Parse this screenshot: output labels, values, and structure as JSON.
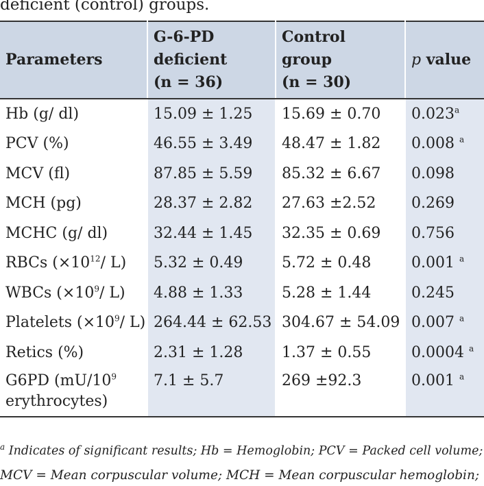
{
  "caption": "deficient (control) groups.",
  "header": {
    "col1": "Parameters",
    "col2_l1": "G-6-PD",
    "col2_l2": "deficient",
    "col2_l3": "(n = 36)",
    "col3_l1": "Control group",
    "col3_l2": "(n = 30)",
    "col4_p": "p",
    "col4_rest": " value"
  },
  "rows": [
    {
      "param": "Hb (g/ dl)",
      "deficient": "15.09 ± 1.25",
      "control": "15.69 ± 0.70",
      "p": "0.023",
      "sig": "a"
    },
    {
      "param": "PCV (%)",
      "deficient": "46.55 ± 3.49",
      "control": "48.47 ± 1.82",
      "p": "0.008 ",
      "sig": "a"
    },
    {
      "param": "MCV (fl)",
      "deficient": "87.85 ± 5.59",
      "control": "85.32 ± 6.67",
      "p": "0.098",
      "sig": ""
    },
    {
      "param": "MCH (pg)",
      "deficient": "28.37 ± 2.82",
      "control": "27.63 ±2.52",
      "p": "0.269",
      "sig": ""
    },
    {
      "param": "MCHC (g/ dl)",
      "deficient": "32.44 ± 1.45",
      "control": "32.35 ± 0.69",
      "p": "0.756",
      "sig": ""
    },
    {
      "param_pre": "RBCs (×10",
      "param_sup": "12",
      "param_post": "/ L)",
      "deficient": "5.32 ± 0.49",
      "control": "5.72 ± 0.48",
      "p": "0.001 ",
      "sig": "a"
    },
    {
      "param_pre": "WBCs (×10",
      "param_sup": "9",
      "param_post": "/ L)",
      "deficient": "4.88 ± 1.33",
      "control": "5.28 ± 1.44",
      "p": "0.245",
      "sig": ""
    },
    {
      "param_pre": "Platelets (×10",
      "param_sup": "9",
      "param_post": "/ L)",
      "deficient": "264.44 ± 62.53",
      "control": "304.67 ± 54.09",
      "p": "0.007 ",
      "sig": "a"
    },
    {
      "param": "Retics (%)",
      "deficient": "2.31 ± 1.28",
      "control": "1.37 ± 0.55",
      "p": "0.0004 ",
      "sig": "a"
    },
    {
      "param_pre": "G6PD (mU/10",
      "param_sup": "9",
      "param_post": " erythrocytes)",
      "deficient": "7.1 ± 5.7",
      "control": "269 ±92.3",
      "p": "0.001 ",
      "sig": "a"
    }
  ],
  "footnote": {
    "line1_sup": "a",
    "line1": " Indicates of significant results; Hb = Hemoglobin; PCV = Packed cell volume;",
    "line2": "MCV = Mean corpuscular volume; MCH = Mean corpuscular hemoglobin;"
  }
}
